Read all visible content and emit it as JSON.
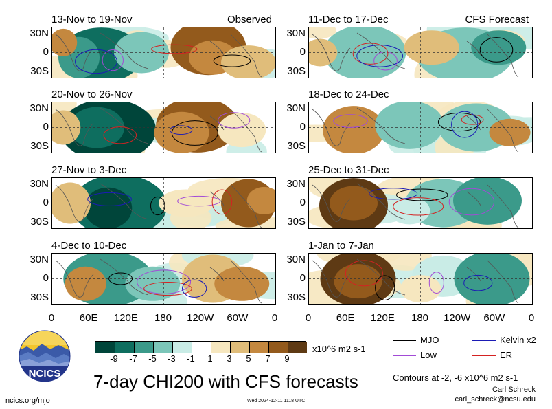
{
  "panels": [
    {
      "title": "13-Nov to 19-Nov",
      "tag": "Observed"
    },
    {
      "title": "20-Nov to 26-Nov",
      "tag": ""
    },
    {
      "title": "27-Nov to 3-Dec",
      "tag": ""
    },
    {
      "title": "4-Dec to 10-Dec",
      "tag": ""
    },
    {
      "title": "11-Dec to 17-Dec",
      "tag": "CFS Forecast"
    },
    {
      "title": "18-Dec to 24-Dec",
      "tag": ""
    },
    {
      "title": "25-Dec to 31-Dec",
      "tag": ""
    },
    {
      "title": "1-Jan to 7-Jan",
      "tag": ""
    }
  ],
  "lat_labels": [
    "30N",
    "0",
    "30S"
  ],
  "lon_labels": [
    "0",
    "60E",
    "120E",
    "180",
    "120W",
    "60W",
    "0"
  ],
  "colorbar": {
    "ticks": [
      "-9",
      "-7",
      "-5",
      "-3",
      "-1",
      "1",
      "3",
      "5",
      "7",
      "9"
    ],
    "units": "x10^6 m2 s-1",
    "colors": [
      "#00453a",
      "#0e6e5f",
      "#3b9a8a",
      "#7cc6b9",
      "#c9ece6",
      "#ffffff",
      "#f6e7bf",
      "#e0bd7a",
      "#c4883f",
      "#935a1c",
      "#5e3a14"
    ]
  },
  "legend": {
    "mjo": {
      "label": "MJO",
      "color": "#000000"
    },
    "kelvin": {
      "label": "Kelvin x2",
      "color": "#1b1bb5"
    },
    "low": {
      "label": "Low",
      "color": "#a24bd6"
    },
    "er": {
      "label": "ER",
      "color": "#d42222"
    }
  },
  "logo_text": "NCICS",
  "main_title": "7-day CHI200 with CFS forecasts",
  "contour_note": "Contours at -2, -6 x10^6 m2 s-1",
  "author": "Carl Schreck",
  "email": "carl_schreck@ncsu.edu",
  "url": "ncics.org/mjo",
  "timestamp": "Wed 2024-12-11 1118 UTC",
  "chart_data": {
    "type": "heatmap",
    "title": "7-day CHI200 with CFS forecasts",
    "variable": "200-hPa velocity potential (CHI200) anomaly",
    "units": "x10^6 m2 s-1",
    "x_axis": [
      "0",
      "60E",
      "120E",
      "180",
      "120W",
      "60W",
      "0"
    ],
    "y_axis": [
      "30N",
      "0",
      "30S"
    ],
    "color_levels": [
      -9,
      -7,
      -5,
      -3,
      -1,
      1,
      3,
      5,
      7,
      9
    ],
    "contour_levels": [
      -2,
      -6
    ],
    "observed_periods": [
      "13-Nov to 19-Nov",
      "20-Nov to 26-Nov",
      "27-Nov to 3-Dec",
      "4-Dec to 10-Dec"
    ],
    "forecast_periods": [
      "11-Dec to 17-Dec",
      "18-Dec to 24-Dec",
      "25-Dec to 31-Dec",
      "1-Jan to 7-Jan"
    ],
    "contour_series": [
      {
        "name": "MJO",
        "color": "#000000"
      },
      {
        "name": "Kelvin x2",
        "color": "#1b1bb5"
      },
      {
        "name": "Low",
        "color": "#a24bd6"
      },
      {
        "name": "ER",
        "color": "#d42222"
      }
    ]
  }
}
